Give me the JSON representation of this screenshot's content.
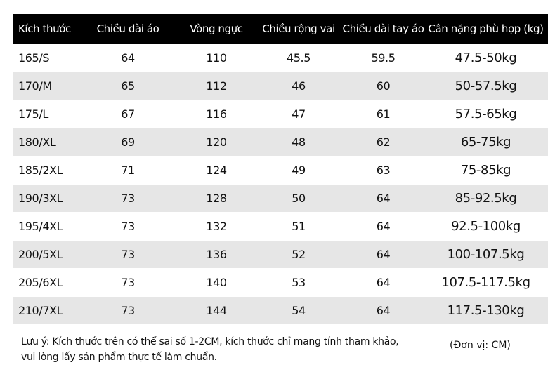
{
  "table": {
    "header": [
      "Kích thước",
      "Chiều dài áo",
      "Vòng ngực",
      "Chiều rộng vai",
      "Chiều dài tay áo",
      "Cân nặng phù hợp (kg)"
    ],
    "rows": [
      [
        "165/S",
        "64",
        "110",
        "45.5",
        "59.5",
        "47.5-50kg"
      ],
      [
        "170/M",
        "65",
        "112",
        "46",
        "60",
        "50-57.5kg"
      ],
      [
        "175/L",
        "67",
        "116",
        "47",
        "61",
        "57.5-65kg"
      ],
      [
        "180/XL",
        "69",
        "120",
        "48",
        "62",
        "65-75kg"
      ],
      [
        "185/2XL",
        "71",
        "124",
        "49",
        "63",
        "75-85kg"
      ],
      [
        "190/3XL",
        "73",
        "128",
        "50",
        "64",
        "85-92.5kg"
      ],
      [
        "195/4XL",
        "73",
        "132",
        "51",
        "64",
        "92.5-100kg"
      ],
      [
        "200/5XL",
        "73",
        "136",
        "52",
        "64",
        "100-107.5kg"
      ],
      [
        "205/6XL",
        "73",
        "140",
        "53",
        "64",
        "107.5-117.5kg"
      ],
      [
        "210/7XL",
        "73",
        "144",
        "54",
        "64",
        "117.5-130kg"
      ]
    ]
  },
  "note": [
    "Lưu ý: Kích thước trên có thể sai số 1-2CM, kích thước chỉ mang tính tham khảo,",
    "vui lòng lấy sản phẩm thực tế làm chuẩn."
  ],
  "unit": "(Đơn vị: CM)"
}
